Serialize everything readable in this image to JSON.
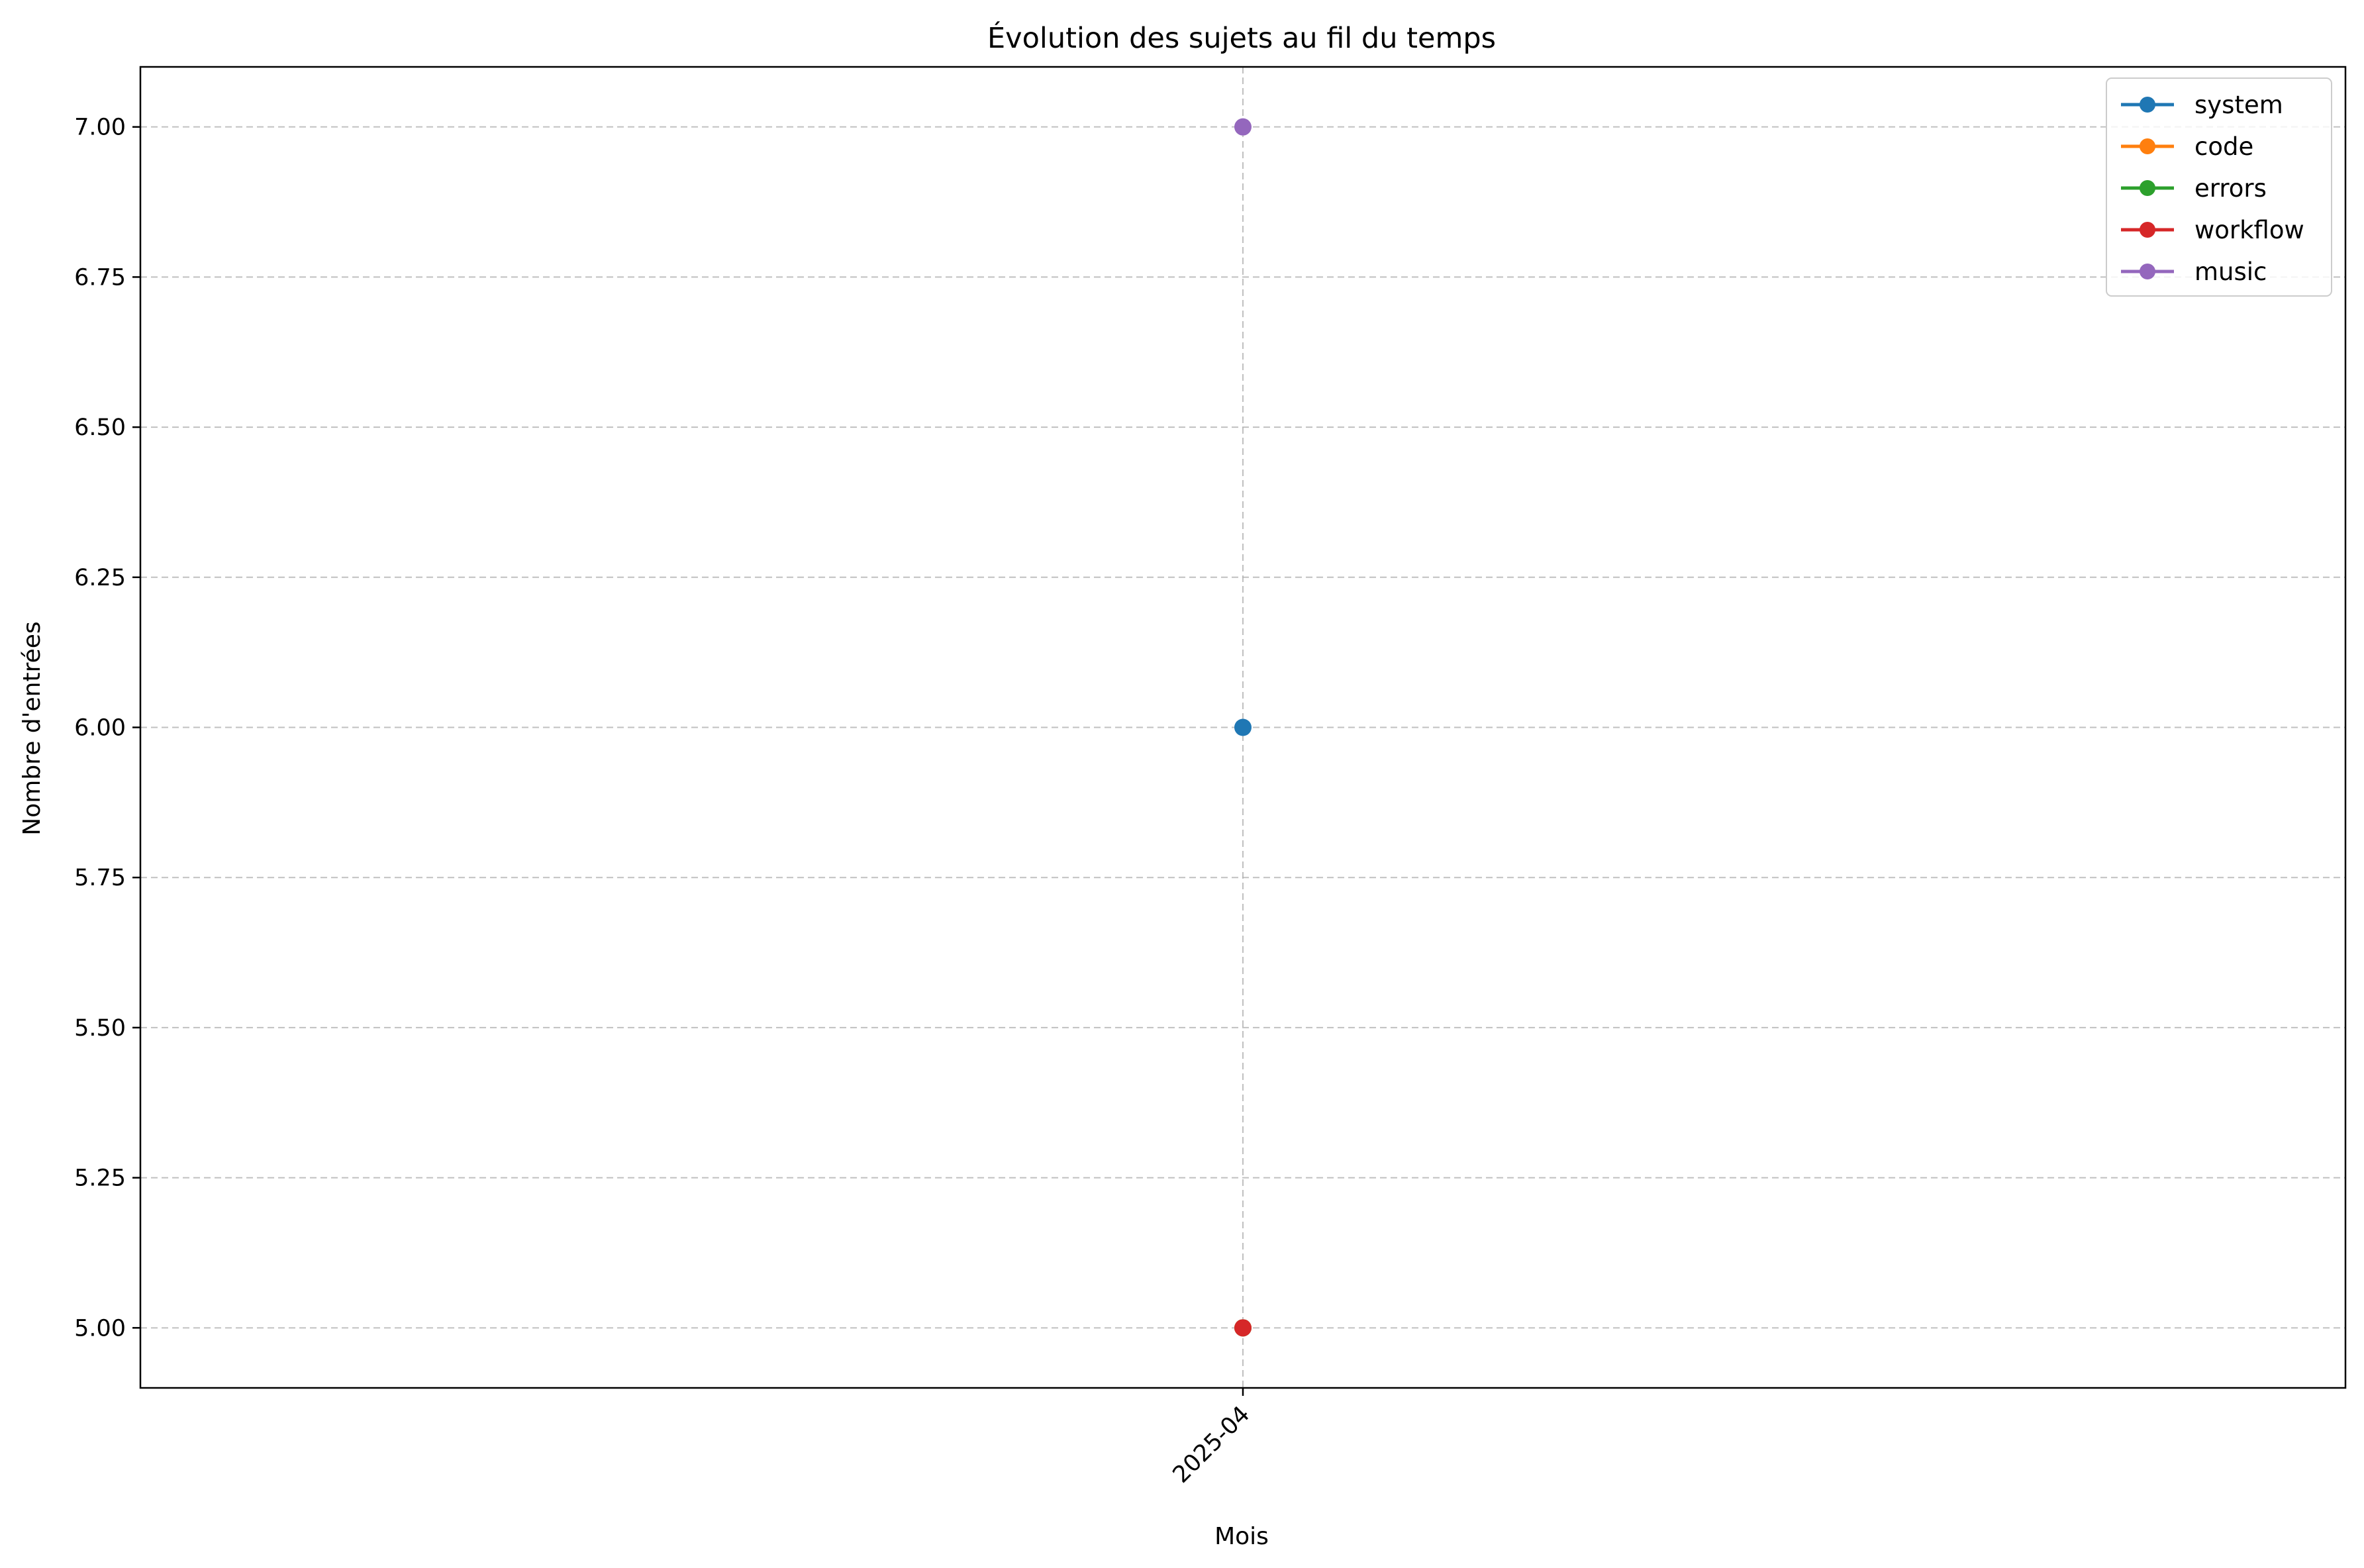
{
  "chart_data": {
    "type": "line",
    "title": "Évolution des sujets au fil du temps",
    "xlabel": "Mois",
    "ylabel": "Nombre d'entrées",
    "categories": [
      "2025-04"
    ],
    "ylim": [
      4.9,
      7.1
    ],
    "yticks": [
      5.0,
      5.25,
      5.5,
      5.75,
      6.0,
      6.25,
      6.5,
      6.75,
      7.0
    ],
    "ytick_labels": [
      "5.00",
      "5.25",
      "5.50",
      "5.75",
      "6.00",
      "6.25",
      "6.50",
      "6.75",
      "7.00"
    ],
    "grid": true,
    "legend_position": "top-right",
    "series": [
      {
        "name": "system",
        "color": "#1f77b4",
        "values": [
          6
        ]
      },
      {
        "name": "code",
        "color": "#ff7f0e",
        "values": [
          5
        ]
      },
      {
        "name": "errors",
        "color": "#2ca02c",
        "values": [
          5
        ]
      },
      {
        "name": "workflow",
        "color": "#d62728",
        "values": [
          5
        ]
      },
      {
        "name": "music",
        "color": "#9467bd",
        "values": [
          7
        ]
      }
    ]
  }
}
